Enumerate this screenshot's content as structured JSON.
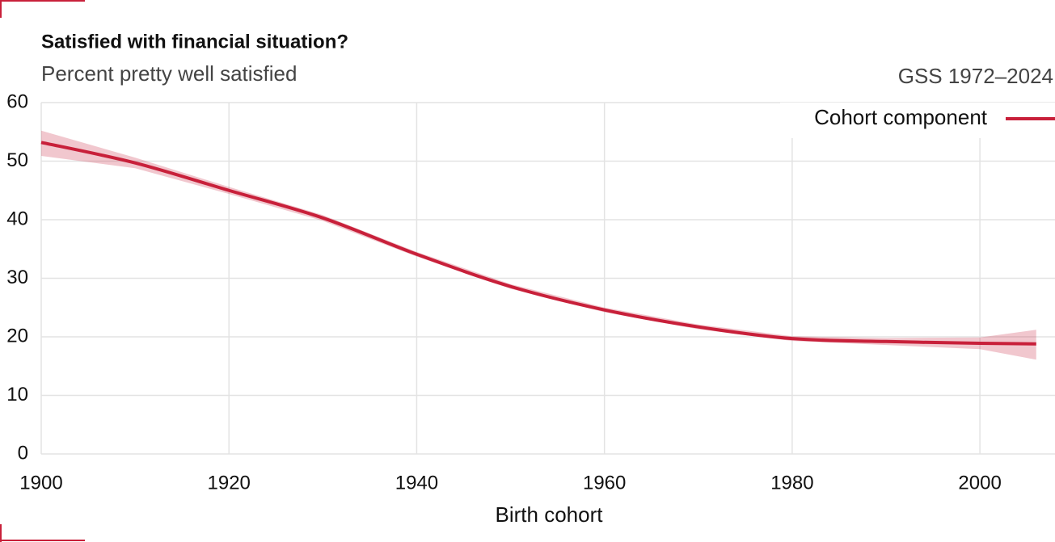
{
  "chart_data": {
    "type": "line",
    "title": "Satisfied with financial situation?",
    "subtitle": "Percent pretty well satisfied",
    "source": "GSS 1972–2024",
    "xlabel": "Birth cohort",
    "x": [
      1900,
      1910,
      1920,
      1930,
      1940,
      1950,
      1960,
      1970,
      1980,
      1990,
      2000,
      2006
    ],
    "series": [
      {
        "name": "Cohort component",
        "color": "#c8203a",
        "values": [
          53.2,
          49.7,
          45.0,
          40.3,
          34.1,
          28.6,
          24.6,
          21.7,
          19.7,
          19.2,
          18.9,
          18.8
        ],
        "upper": [
          55.2,
          50.6,
          45.6,
          40.8,
          34.5,
          29.0,
          25.0,
          22.1,
          20.1,
          19.8,
          19.9,
          21.2
        ],
        "lower": [
          50.9,
          48.8,
          44.4,
          39.8,
          33.7,
          28.2,
          24.2,
          21.3,
          19.3,
          18.6,
          17.9,
          16.1
        ]
      }
    ],
    "xlim": [
      1900,
      2008
    ],
    "xticks": [
      1900,
      1920,
      1940,
      1960,
      1980,
      2000
    ],
    "ylim": [
      0,
      60
    ],
    "yticks": [
      0,
      10,
      20,
      30,
      40,
      50,
      60
    ],
    "grid": true,
    "legend": "top-right"
  }
}
